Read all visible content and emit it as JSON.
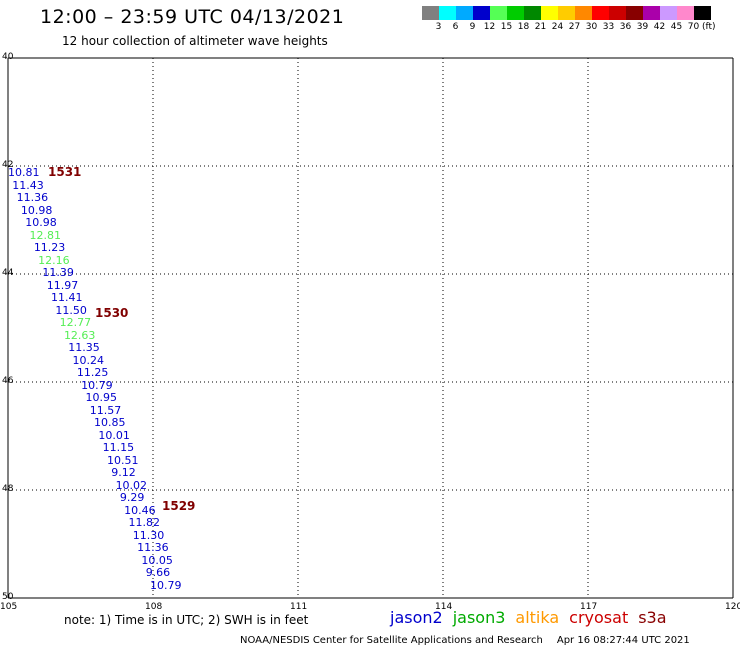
{
  "header": {
    "title": "12:00 – 23:59 UTC 04/13/2021",
    "subtitle": "12 hour collection of altimeter wave heights"
  },
  "colorbar": {
    "colors": [
      "#808080",
      "#00ffff",
      "#00aaff",
      "#0000cc",
      "#55ff55",
      "#00cc00",
      "#008800",
      "#ffff00",
      "#ffcc00",
      "#ff8800",
      "#ff0000",
      "#cc0000",
      "#880000",
      "#aa00aa",
      "#cc99ff",
      "#ff88cc",
      "#000000"
    ],
    "labels": [
      "3",
      "6",
      "9",
      "12",
      "15",
      "18",
      "21",
      "24",
      "27",
      "30",
      "33",
      "36",
      "39",
      "42",
      "45",
      "70"
    ],
    "unit": "(ft)"
  },
  "map": {
    "lat_labels": [
      "40",
      "42",
      "44",
      "46",
      "48",
      "50"
    ],
    "lon_labels": [
      "105",
      "108",
      "111",
      "114",
      "117",
      "120"
    ]
  },
  "passes": [
    "1531",
    "1530",
    "1529"
  ],
  "wave_heights": [
    {
      "value": "10.81",
      "satellite": "jason2"
    },
    {
      "value": "11.43",
      "satellite": "jason2"
    },
    {
      "value": "11.36",
      "satellite": "jason2"
    },
    {
      "value": "10.98",
      "satellite": "jason2"
    },
    {
      "value": "10.98",
      "satellite": "jason2"
    },
    {
      "value": "12.81",
      "satellite": "jason3"
    },
    {
      "value": "11.23",
      "satellite": "jason2"
    },
    {
      "value": "12.16",
      "satellite": "jason3"
    },
    {
      "value": "11.39",
      "satellite": "jason2"
    },
    {
      "value": "11.97",
      "satellite": "jason2"
    },
    {
      "value": "11.41",
      "satellite": "jason2"
    },
    {
      "value": "11.50",
      "satellite": "jason2"
    },
    {
      "value": "12.77",
      "satellite": "jason3"
    },
    {
      "value": "12.63",
      "satellite": "jason3"
    },
    {
      "value": "11.35",
      "satellite": "jason2"
    },
    {
      "value": "10.24",
      "satellite": "jason2"
    },
    {
      "value": "11.25",
      "satellite": "jason2"
    },
    {
      "value": "10.79",
      "satellite": "jason2"
    },
    {
      "value": "10.95",
      "satellite": "jason2"
    },
    {
      "value": "11.57",
      "satellite": "jason2"
    },
    {
      "value": "10.85",
      "satellite": "jason2"
    },
    {
      "value": "10.01",
      "satellite": "jason2"
    },
    {
      "value": "11.15",
      "satellite": "jason2"
    },
    {
      "value": "10.51",
      "satellite": "jason2"
    },
    {
      "value": "9.12",
      "satellite": "jason2"
    },
    {
      "value": "10.02",
      "satellite": "jason2"
    },
    {
      "value": "9.29",
      "satellite": "jason2"
    },
    {
      "value": "10.46",
      "satellite": "jason2"
    },
    {
      "value": "11.82",
      "satellite": "jason2"
    },
    {
      "value": "11.30",
      "satellite": "jason2"
    },
    {
      "value": "11.36",
      "satellite": "jason2"
    },
    {
      "value": "10.05",
      "satellite": "jason2"
    },
    {
      "value": "9.66",
      "satellite": "jason2"
    },
    {
      "value": "10.79",
      "satellite": "jason2"
    }
  ],
  "footer": {
    "note": "note:  1) Time is in UTC;  2) SWH is in feet",
    "legend": [
      {
        "name": "jason2",
        "color": "#0000cc"
      },
      {
        "name": "jason3",
        "color": "#00aa00"
      },
      {
        "name": "altika",
        "color": "#ff9900"
      },
      {
        "name": "cryosat",
        "color": "#cc0000"
      },
      {
        "name": "s3a",
        "color": "#880000"
      }
    ],
    "credit": "NOAA/NESDIS Center for Satellite Applications and Research",
    "timestamp": "Apr 16 08:27:44 UTC 2021"
  }
}
